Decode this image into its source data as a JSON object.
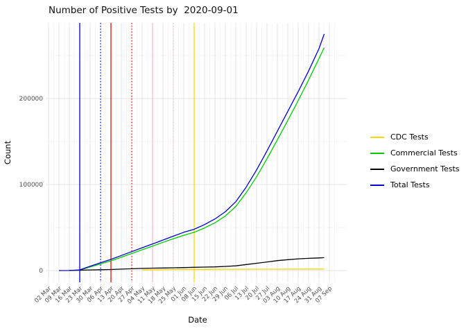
{
  "title": "Number of Positive Tests by  2020-09-01",
  "axes": {
    "x_label": "Date",
    "y_label": "Count",
    "y_tick_labels": [
      "0",
      "100000",
      "200000"
    ]
  },
  "chart_data": {
    "type": "line",
    "title": "Number of Positive Tests by  2020-09-01",
    "xlabel": "Date",
    "ylabel": "Count",
    "x_tick_labels": [
      "02 Mar",
      "09 Mar",
      "16 Mar",
      "23 Mar",
      "30 Mar",
      "06 Apr",
      "13 Apr",
      "20 Apr",
      "27 Apr",
      "04 May",
      "11 May",
      "18 May",
      "25 May",
      "01 Jun",
      "08 Jun",
      "15 Jun",
      "22 Jun",
      "29 Jun",
      "06 Jul",
      "13 Jul",
      "20 Jul",
      "27 Jul",
      "03 Aug",
      "10 Aug",
      "17 Aug",
      "24 Aug",
      "31 Aug",
      "07 Sep"
    ],
    "y_major_ticks": [
      0,
      100000,
      200000
    ],
    "y_minor_ticks": [
      50000,
      150000,
      250000
    ],
    "ylim": [
      -14000,
      288000
    ],
    "grid": true,
    "legend_position": "right",
    "end_date": "2020-09-01",
    "series": [
      {
        "name": "CDC Tests",
        "color": "#FFD700",
        "values": [
          null,
          null,
          null,
          null,
          null,
          null,
          null,
          null,
          null,
          800,
          1000,
          1100,
          1200,
          1300,
          1350,
          1400,
          1450,
          1500,
          1500,
          1550,
          1600,
          1600,
          1650,
          1700,
          1700,
          1750,
          1800
        ],
        "final": 1800
      },
      {
        "name": "Commercial Tests",
        "color": "#00CC00",
        "values": [
          null,
          null,
          0,
          500,
          4200,
          7700,
          11300,
          15500,
          19800,
          24200,
          28500,
          32800,
          37000,
          41000,
          44500,
          49500,
          55500,
          63500,
          74500,
          90500,
          109000,
          130000,
          152000,
          174500,
          197500,
          221500,
          246500
        ],
        "final": 259000
      },
      {
        "name": "Government Tests",
        "color": "#000000",
        "values": [
          null,
          null,
          100,
          400,
          700,
          1000,
          1200,
          1700,
          2100,
          2500,
          2800,
          3000,
          3200,
          3500,
          3800,
          4000,
          4300,
          4800,
          5500,
          7000,
          8500,
          10000,
          11500,
          12700,
          13600,
          14200,
          14700
        ],
        "final": 15000
      },
      {
        "name": "Total Tests",
        "color": "#0000CD",
        "values": [
          null,
          0,
          100,
          800,
          5000,
          9000,
          13000,
          17500,
          22000,
          26500,
          31000,
          35500,
          40000,
          44500,
          48000,
          53500,
          60000,
          68500,
          80000,
          97000,
          117000,
          139000,
          162000,
          185000,
          208000,
          232000,
          258000
        ],
        "final": 275000
      }
    ],
    "vlines": [
      {
        "x_label": "23 Mar",
        "color": "#0000CD",
        "style": "solid"
      },
      {
        "x_label": "06 Apr",
        "color": "#0000CD",
        "style": "dotted"
      },
      {
        "x_label": "13 Apr",
        "color": "#FF0000",
        "style": "solid"
      },
      {
        "x_label": "27 Apr",
        "color": "#FF0000",
        "style": "dotted"
      },
      {
        "x_label": "11 May",
        "color": "#FFB6C1",
        "style": "solid"
      },
      {
        "x_label": "25 May",
        "color": "#FFB6C1",
        "style": "dotted"
      },
      {
        "x_label": "08 Jun",
        "color": "#FFD700",
        "style": "solid"
      }
    ],
    "colors": {
      "grid_major": "#e3e3e3",
      "grid_minor": "#f1f1f1",
      "axis_text": "#4d4d4d",
      "axis_title": "#000000"
    }
  },
  "legend": {
    "items": [
      "CDC Tests",
      "Commercial Tests",
      "Government Tests",
      "Total Tests"
    ]
  }
}
